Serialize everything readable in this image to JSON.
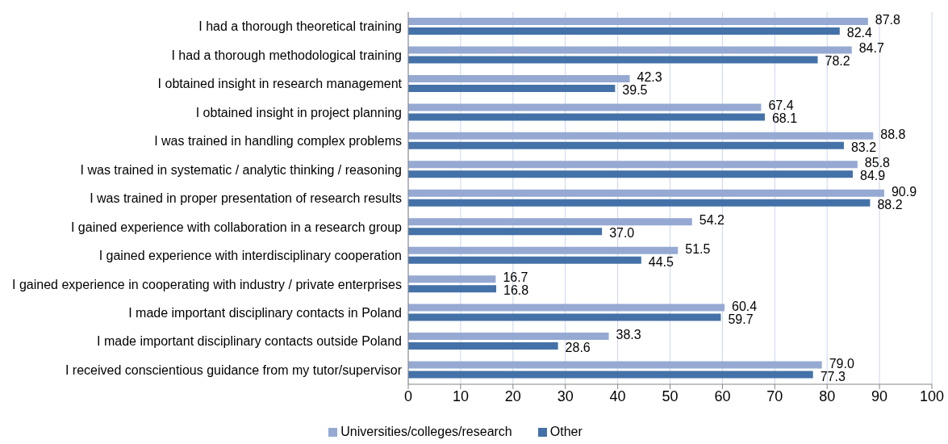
{
  "chart_data": {
    "type": "bar",
    "orientation": "horizontal",
    "categories": [
      "I had a thorough theoretical training",
      "I had a thorough methodological training",
      "I obtained insight in research management",
      "I obtained insight in project planning",
      "I was trained in handling complex problems",
      "I was trained in systematic / analytic thinking / reasoning",
      "I was trained in proper presentation of research results",
      "I gained experience with collaboration in a research group",
      "I gained experience with interdisciplinary cooperation",
      "I gained experience in cooperating with industry / private enterprises",
      "I made important disciplinary contacts in Poland",
      "I made important disciplinary contacts outside Poland",
      "I received conscientious guidance from my tutor/supervisor"
    ],
    "series": [
      {
        "name": "Universities/colleges/research",
        "color": "#95a9d2",
        "values": [
          87.8,
          84.7,
          42.3,
          67.4,
          88.8,
          85.8,
          90.9,
          54.2,
          51.5,
          16.7,
          60.4,
          38.3,
          79.0
        ],
        "value_labels": [
          "87.8",
          "84.7",
          "42.3",
          "67.4",
          "88.8",
          "85.8",
          "90.9",
          "54.2",
          "51.5",
          "16.7",
          "60.4",
          "38.3",
          "79.0"
        ]
      },
      {
        "name": "Other",
        "color": "#4472a8",
        "values": [
          82.4,
          78.2,
          39.5,
          68.1,
          83.2,
          84.9,
          88.2,
          37.0,
          44.5,
          16.8,
          59.7,
          28.6,
          77.3
        ],
        "value_labels": [
          "82.4",
          "78.2",
          "39.5",
          "68.1",
          "83.2",
          "84.9",
          "88.2",
          "37.0",
          "44.5",
          "16.8",
          "59.7",
          "28.6",
          "77.3"
        ]
      }
    ],
    "xlim": [
      0,
      100
    ],
    "xticks": [
      0,
      10,
      20,
      30,
      40,
      50,
      60,
      70,
      80,
      90,
      100
    ],
    "grid": "x",
    "legend": "bottom"
  }
}
